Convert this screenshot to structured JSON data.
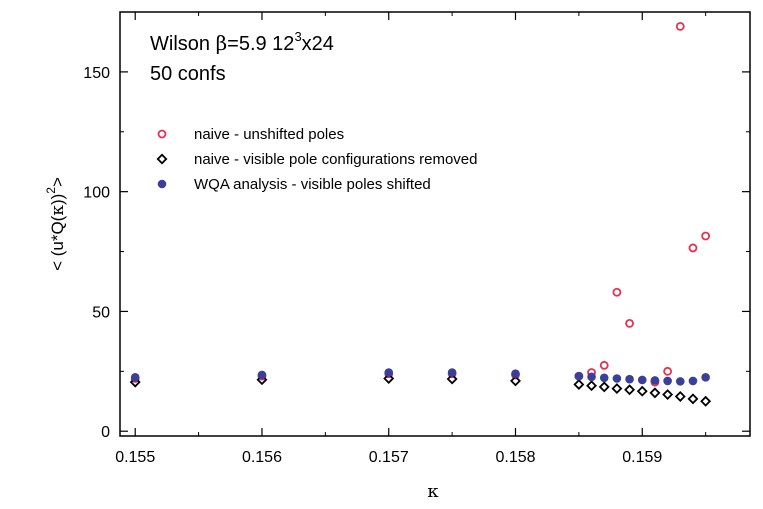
{
  "chart_data": {
    "type": "scatter",
    "title_line1": {
      "prefix": "Wilson ",
      "beta": "β",
      "mid": "=5.9 12",
      "sup": "3",
      "suffix": "x24"
    },
    "title_line2": "50 confs",
    "xlabel": "κ",
    "ylabel": {
      "pre": "< (u*Q(",
      "kappa": "κ",
      "post": "))",
      "sup": "2",
      "end": ">"
    },
    "xlim": [
      0.15488,
      0.15985
    ],
    "ylim": [
      -2,
      175
    ],
    "x_ticks": [
      {
        "value": 0.155,
        "label": "0.155"
      },
      {
        "value": 0.156,
        "label": "0.156"
      },
      {
        "value": 0.157,
        "label": "0.157"
      },
      {
        "value": 0.158,
        "label": "0.158"
      },
      {
        "value": 0.159,
        "label": "0.159"
      }
    ],
    "y_ticks": [
      {
        "value": 0,
        "label": "0"
      },
      {
        "value": 50,
        "label": "50"
      },
      {
        "value": 100,
        "label": "100"
      },
      {
        "value": 150,
        "label": "150"
      }
    ],
    "series": [
      {
        "name": "naive - unshifted poles",
        "marker": "open-circle",
        "color": "#e8304f",
        "points": [
          [
            0.155,
            22.0
          ],
          [
            0.156,
            23.0
          ],
          [
            0.157,
            24.0
          ],
          [
            0.1575,
            24.0
          ],
          [
            0.158,
            23.5
          ],
          [
            0.1585,
            23.0
          ],
          [
            0.1586,
            24.5
          ],
          [
            0.1587,
            27.5
          ],
          [
            0.1588,
            58.0
          ],
          [
            0.1589,
            45.0
          ],
          [
            0.1591,
            20.5
          ],
          [
            0.1592,
            25.0
          ],
          [
            0.1593,
            169.0
          ],
          [
            0.1594,
            76.5
          ],
          [
            0.1595,
            81.5
          ]
        ]
      },
      {
        "name": "naive - visible pole configurations removed",
        "marker": "open-diamond",
        "color": "#000000",
        "points": [
          [
            0.155,
            20.5
          ],
          [
            0.156,
            21.5
          ],
          [
            0.157,
            22.0
          ],
          [
            0.1575,
            21.8
          ],
          [
            0.158,
            21.0
          ],
          [
            0.1585,
            19.5
          ],
          [
            0.1586,
            19.0
          ],
          [
            0.1587,
            18.5
          ],
          [
            0.1588,
            17.8
          ],
          [
            0.1589,
            17.3
          ],
          [
            0.159,
            16.7
          ],
          [
            0.1591,
            16.0
          ],
          [
            0.1592,
            15.3
          ],
          [
            0.1593,
            14.5
          ],
          [
            0.1594,
            13.5
          ],
          [
            0.1595,
            12.5
          ]
        ]
      },
      {
        "name": "WQA analysis - visible poles shifted",
        "marker": "filled-circle",
        "color": "#3a3f9a",
        "points": [
          [
            0.155,
            22.5
          ],
          [
            0.156,
            23.5
          ],
          [
            0.157,
            24.5
          ],
          [
            0.1575,
            24.5
          ],
          [
            0.158,
            24.0
          ],
          [
            0.1585,
            23.0
          ],
          [
            0.1586,
            22.7
          ],
          [
            0.1587,
            22.3
          ],
          [
            0.1588,
            22.0
          ],
          [
            0.1589,
            21.7
          ],
          [
            0.159,
            21.4
          ],
          [
            0.1591,
            21.2
          ],
          [
            0.1592,
            21.0
          ],
          [
            0.1593,
            20.8
          ],
          [
            0.1594,
            21.0
          ],
          [
            0.1595,
            22.5
          ]
        ]
      }
    ],
    "legend": {
      "position": "top-left"
    }
  }
}
